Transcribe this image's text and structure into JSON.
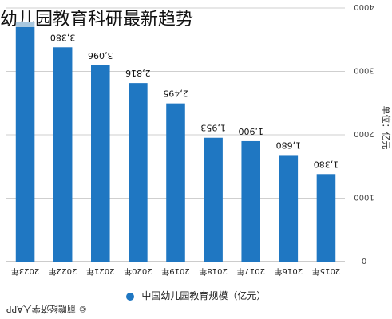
{
  "page": {
    "title": "幼儿园教育科研最新趋势"
  },
  "source": "© 前瞻经济学人APP",
  "colors": {
    "bar": "#1f77c2",
    "bar_top": "#a9c8df",
    "grid": "#cfcfcf",
    "axis": "#999999",
    "label": "#111111"
  },
  "chart_data": {
    "type": "bar",
    "orientation": "rotated-180",
    "title": "",
    "categories": [
      "2023年",
      "2022年",
      "2021年",
      "2020年",
      "2019年",
      "2018年",
      "2017年",
      "2016年",
      "2015年"
    ],
    "series": [
      {
        "name": "中国幼儿园教育规模（亿元）",
        "values": [
          3900,
          3380,
          3096,
          2816,
          2495,
          1953,
          1900,
          1680,
          1380
        ]
      }
    ],
    "data_labels": [
      "",
      "3,380",
      "3,096",
      "2,816",
      "2,495",
      "1,953",
      "1,900",
      "1,680",
      "1,380"
    ],
    "ylabel": "单位：亿元",
    "yticks": [
      0,
      1000,
      2000,
      3000,
      4000
    ],
    "ylim": [
      0,
      4000
    ],
    "grid": true,
    "legend_position": "bottom"
  }
}
